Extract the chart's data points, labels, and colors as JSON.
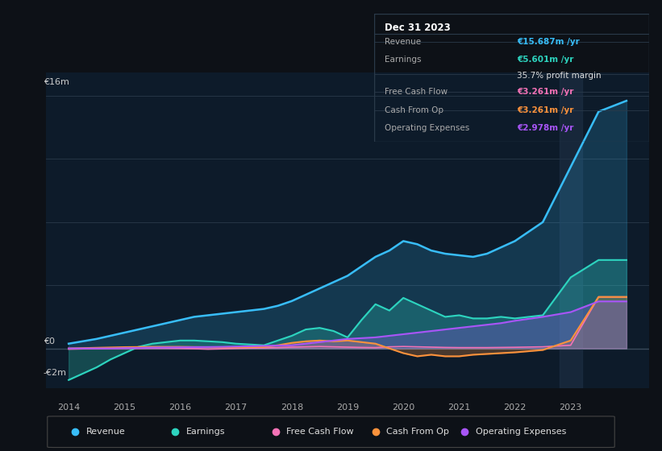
{
  "bg_color": "#0d1117",
  "plot_bg_color": "#0d1b2a",
  "grid_color": "#263545",
  "zero_line_color": "#3a4a5a",
  "years": [
    2014,
    2014.25,
    2014.5,
    2014.75,
    2015,
    2015.25,
    2015.5,
    2015.75,
    2016,
    2016.25,
    2016.5,
    2016.75,
    2017,
    2017.25,
    2017.5,
    2017.75,
    2018,
    2018.25,
    2018.5,
    2018.75,
    2019,
    2019.25,
    2019.5,
    2019.75,
    2020,
    2020.25,
    2020.5,
    2020.75,
    2021,
    2021.25,
    2021.5,
    2021.75,
    2022,
    2022.5,
    2023,
    2023.5,
    2024
  ],
  "revenue": [
    0.3,
    0.45,
    0.6,
    0.8,
    1.0,
    1.2,
    1.4,
    1.6,
    1.8,
    2.0,
    2.1,
    2.2,
    2.3,
    2.4,
    2.5,
    2.7,
    3.0,
    3.4,
    3.8,
    4.2,
    4.6,
    5.2,
    5.8,
    6.2,
    6.8,
    6.6,
    6.2,
    6.0,
    5.9,
    5.8,
    6.0,
    6.4,
    6.8,
    8.0,
    11.5,
    15.0,
    15.687
  ],
  "earnings": [
    -2.0,
    -1.6,
    -1.2,
    -0.7,
    -0.3,
    0.1,
    0.3,
    0.4,
    0.5,
    0.5,
    0.45,
    0.4,
    0.3,
    0.25,
    0.2,
    0.5,
    0.8,
    1.2,
    1.3,
    1.1,
    0.7,
    1.8,
    2.8,
    2.4,
    3.2,
    2.8,
    2.4,
    2.0,
    2.1,
    1.9,
    1.9,
    2.0,
    1.9,
    2.1,
    4.5,
    5.601,
    5.601
  ],
  "free_cash_flow": [
    -0.05,
    -0.03,
    -0.02,
    -0.01,
    0.0,
    0.0,
    0.01,
    0.01,
    0.0,
    -0.02,
    -0.05,
    -0.03,
    0.0,
    0.02,
    0.03,
    0.05,
    0.08,
    0.1,
    0.12,
    0.1,
    0.08,
    0.06,
    0.05,
    0.1,
    0.12,
    0.1,
    0.08,
    0.06,
    0.05,
    0.05,
    0.05,
    0.06,
    0.07,
    0.1,
    0.2,
    3.261,
    3.261
  ],
  "cash_from_op": [
    0.0,
    0.02,
    0.04,
    0.06,
    0.08,
    0.09,
    0.1,
    0.1,
    0.1,
    0.09,
    0.08,
    0.07,
    0.07,
    0.08,
    0.09,
    0.2,
    0.35,
    0.45,
    0.5,
    0.45,
    0.5,
    0.4,
    0.3,
    0.0,
    -0.3,
    -0.5,
    -0.4,
    -0.5,
    -0.5,
    -0.4,
    -0.35,
    -0.3,
    -0.25,
    -0.1,
    0.5,
    3.261,
    3.261
  ],
  "op_expenses": [
    0.0,
    0.0,
    0.0,
    0.0,
    0.02,
    0.03,
    0.05,
    0.06,
    0.07,
    0.08,
    0.09,
    0.1,
    0.12,
    0.14,
    0.16,
    0.18,
    0.2,
    0.3,
    0.4,
    0.5,
    0.6,
    0.65,
    0.7,
    0.8,
    0.9,
    1.0,
    1.1,
    1.2,
    1.3,
    1.4,
    1.5,
    1.6,
    1.75,
    2.0,
    2.3,
    2.978,
    2.978
  ],
  "revenue_color": "#38bdf8",
  "earnings_color": "#2dd4bf",
  "free_cash_flow_color": "#f472b6",
  "cash_from_op_color": "#fb923c",
  "op_expenses_color": "#a855f7",
  "ylim_min": -2.5,
  "ylim_max": 17.5,
  "xlim_min": 2013.6,
  "xlim_max": 2024.4,
  "ytick_values": [
    0,
    4,
    8,
    12,
    16
  ],
  "xtick_values": [
    2014,
    2015,
    2016,
    2017,
    2018,
    2019,
    2020,
    2021,
    2022,
    2023
  ],
  "xtick_labels": [
    "2014",
    "2015",
    "2016",
    "2017",
    "2018",
    "2019",
    "2020",
    "2021",
    "2022",
    "2023"
  ],
  "y_ann_16": "€16m",
  "y_ann_0": "€0",
  "y_ann_neg2": "-€2m",
  "legend_labels": [
    "Revenue",
    "Earnings",
    "Free Cash Flow",
    "Cash From Op",
    "Operating Expenses"
  ],
  "legend_colors": [
    "#38bdf8",
    "#2dd4bf",
    "#f472b6",
    "#fb923c",
    "#a855f7"
  ],
  "tooltip_title": "Dec 31 2023",
  "table_rows": [
    {
      "label": "Revenue",
      "value": "€15.687m /yr",
      "value_color": "#38bdf8"
    },
    {
      "label": "Earnings",
      "value": "€5.601m /yr",
      "value_color": "#2dd4bf"
    },
    {
      "label": "",
      "value": "35.7% profit margin",
      "value_color": "#dddddd"
    },
    {
      "label": "Free Cash Flow",
      "value": "€3.261m /yr",
      "value_color": "#f472b6"
    },
    {
      "label": "Cash From Op",
      "value": "€3.261m /yr",
      "value_color": "#fb923c"
    },
    {
      "label": "Operating Expenses",
      "value": "€2.978m /yr",
      "value_color": "#a855f7"
    }
  ]
}
